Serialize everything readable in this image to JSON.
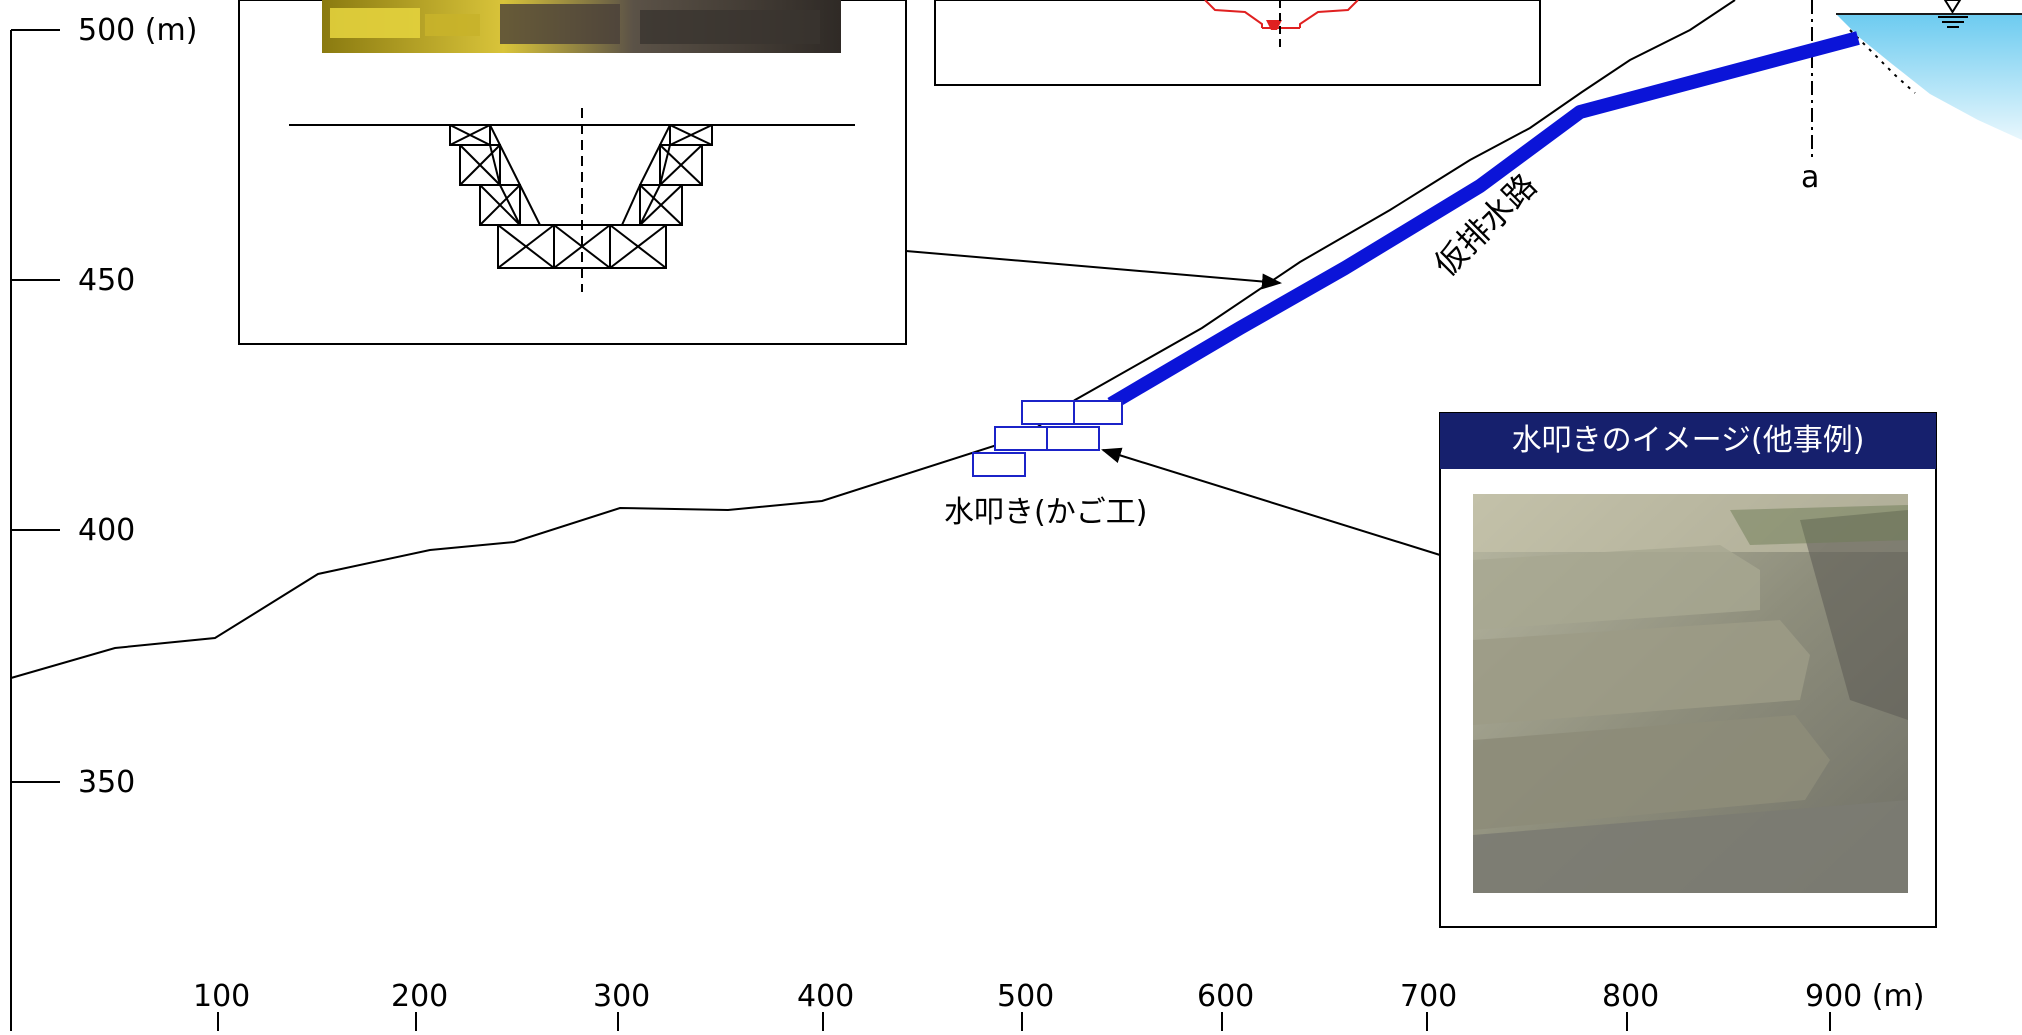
{
  "y_axis": {
    "unit": "500 (m)",
    "ticks": [
      {
        "label": "500 (m)",
        "value": 500
      },
      {
        "label": "450",
        "value": 450
      },
      {
        "label": "400",
        "value": 400
      },
      {
        "label": "350",
        "value": 350
      }
    ]
  },
  "x_axis": {
    "ticks": [
      {
        "label": "100",
        "value": 100
      },
      {
        "label": "200",
        "value": 200
      },
      {
        "label": "300",
        "value": 300
      },
      {
        "label": "400",
        "value": 400
      },
      {
        "label": "500",
        "value": 500
      },
      {
        "label": "600",
        "value": 600
      },
      {
        "label": "700",
        "value": 700
      },
      {
        "label": "800",
        "value": 800
      },
      {
        "label": "900 (m)",
        "value": 900
      }
    ]
  },
  "labels": {
    "channel": "仮排水路",
    "apron": "水叩き(かご工)",
    "section_marker": "a"
  },
  "image_box": {
    "title": "水叩きのイメージ(他事例)"
  },
  "colors": {
    "channel": "#0b14d8",
    "apron": "#1b23c8",
    "title_bg": "#16206d",
    "section_red": "#e02020",
    "water": "#8fd8f3"
  }
}
